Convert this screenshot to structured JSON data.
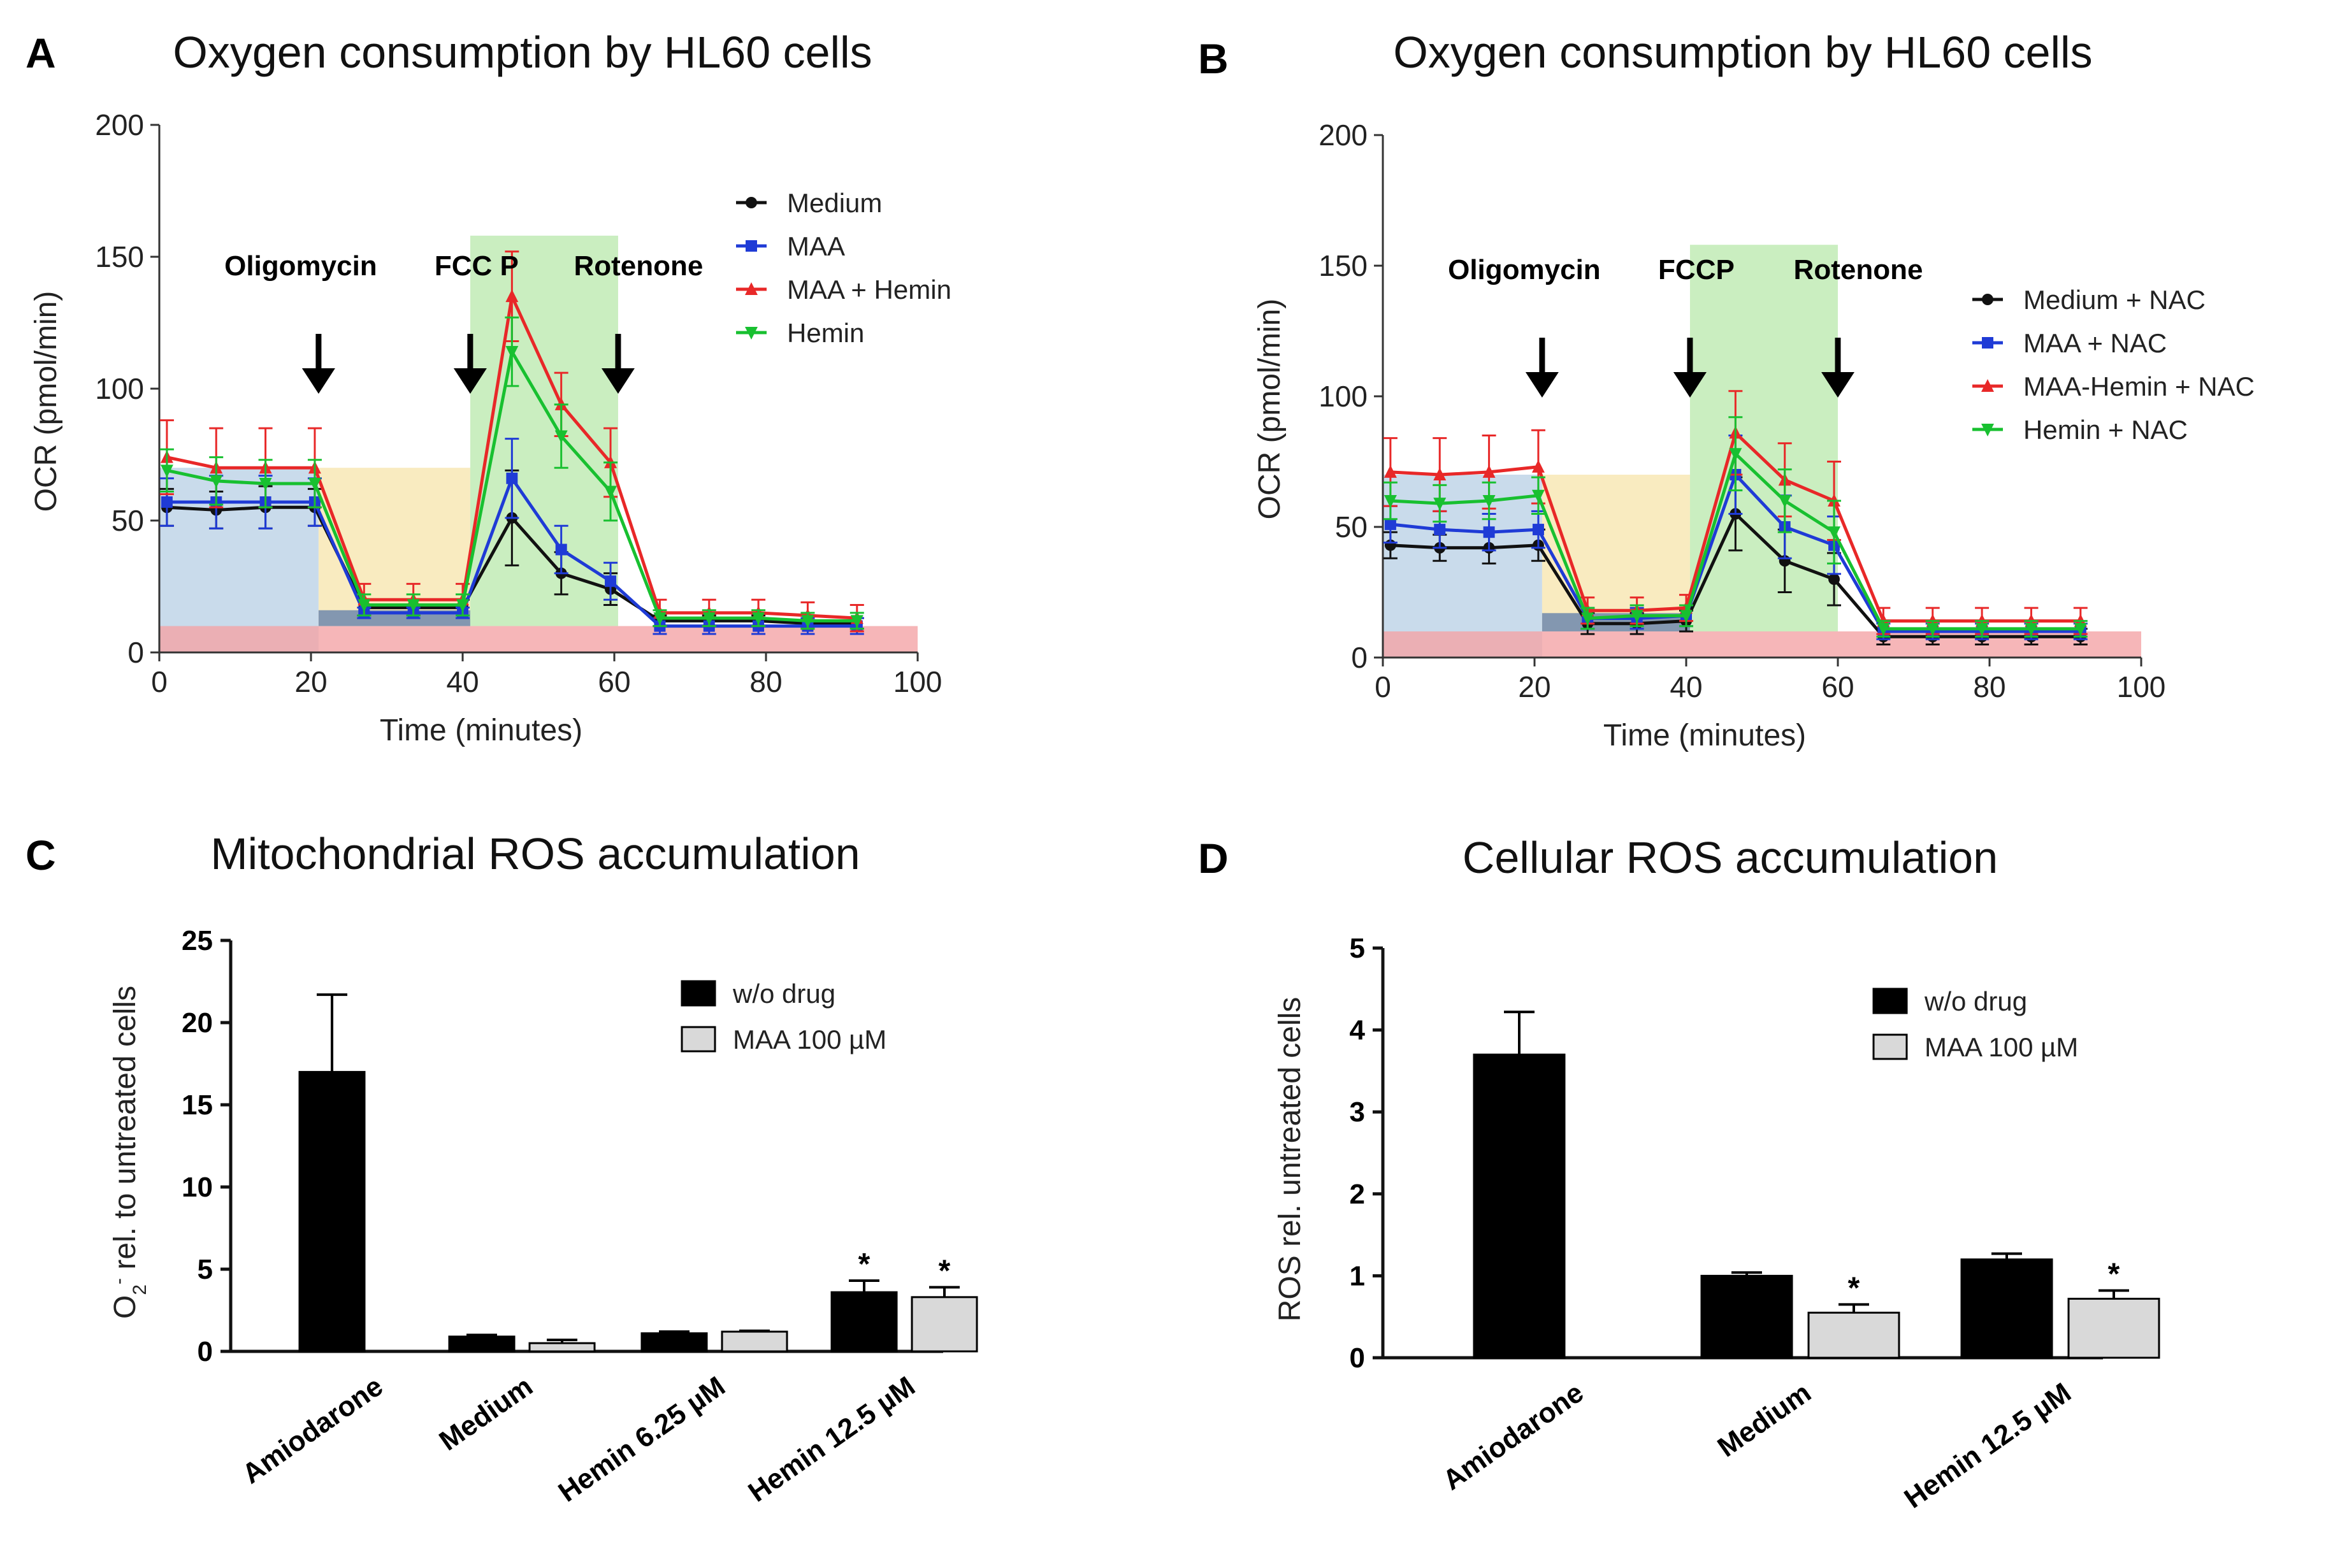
{
  "chart_data": [
    {
      "panel": "A",
      "type": "line",
      "title": "Oxygen consumption by HL60 cells",
      "xlabel": "Time (minutes)",
      "ylabel": "OCR (pmol/min)",
      "xlim": [
        0,
        100
      ],
      "ylim": [
        0,
        200
      ],
      "xticks": [
        0,
        20,
        40,
        60,
        80,
        100
      ],
      "yticks": [
        0,
        50,
        100,
        150,
        200
      ],
      "x": [
        1,
        7.5,
        14,
        20.5,
        27,
        33.5,
        40,
        46.5,
        53,
        59.5,
        66,
        72.5,
        79,
        85.5,
        92
      ],
      "series": [
        {
          "name": "Medium",
          "color": "#111111",
          "marker": "circle",
          "values": [
            55,
            54,
            55,
            55,
            17,
            17,
            17,
            51,
            30,
            24,
            12,
            12,
            12,
            11,
            11
          ],
          "errors": [
            7,
            7,
            8,
            7,
            3,
            3,
            3,
            18,
            8,
            6,
            2,
            2,
            2,
            2,
            2
          ]
        },
        {
          "name": "MAA",
          "color": "#1f3bd6",
          "marker": "square",
          "values": [
            57,
            57,
            57,
            57,
            15,
            15,
            15,
            66,
            39,
            27,
            10,
            10,
            10,
            10,
            10
          ],
          "errors": [
            9,
            10,
            10,
            9,
            2,
            2,
            2,
            15,
            9,
            7,
            3,
            3,
            3,
            3,
            3
          ]
        },
        {
          "name": "MAA + Hemin",
          "color": "#e82828",
          "marker": "triangle-up",
          "values": [
            74,
            70,
            70,
            70,
            20,
            20,
            20,
            135,
            94,
            72,
            15,
            15,
            15,
            14,
            13
          ],
          "errors": [
            14,
            15,
            15,
            15,
            6,
            6,
            6,
            17,
            12,
            13,
            5,
            5,
            5,
            5,
            5
          ]
        },
        {
          "name": "Hemin",
          "color": "#18c030",
          "marker": "triangle-down",
          "values": [
            69,
            65,
            64,
            64,
            18,
            18,
            18,
            114,
            82,
            61,
            13,
            13,
            13,
            12,
            12
          ],
          "errors": [
            8,
            9,
            9,
            9,
            4,
            4,
            4,
            13,
            12,
            11,
            3,
            3,
            3,
            3,
            3
          ]
        }
      ],
      "annotations": [
        "Oligomycin",
        "FCC P",
        "Rotenone"
      ],
      "treatment_times": [
        21,
        41,
        60.5
      ],
      "shaded_regions": [
        {
          "name": "basal",
          "x": [
            0,
            21
          ],
          "y": [
            0,
            70
          ],
          "color": "#bcd2e6"
        },
        {
          "name": "oligomycin",
          "x": [
            21,
            41
          ],
          "y": [
            10,
            70
          ],
          "color": "#f7e6b0"
        },
        {
          "name": "fccp",
          "x": [
            41,
            60.5
          ],
          "y": [
            10,
            158
          ],
          "color": "#bdeab0"
        },
        {
          "name": "non-mito",
          "x": [
            0,
            100
          ],
          "y": [
            0,
            10
          ],
          "color": "#f4a4a6"
        },
        {
          "name": "oligo-floor",
          "x": [
            21,
            41
          ],
          "y": [
            10,
            16
          ],
          "color": "#6e88ad"
        }
      ],
      "legend_position": "top-right"
    },
    {
      "panel": "B",
      "type": "line",
      "title": "Oxygen consumption by HL60 cells",
      "xlabel": "Time (minutes)",
      "ylabel": "OCR (pmol/min)",
      "xlim": [
        0,
        100
      ],
      "ylim": [
        0,
        200
      ],
      "xticks": [
        0,
        20,
        40,
        60,
        80,
        100
      ],
      "yticks": [
        0,
        50,
        100,
        150,
        200
      ],
      "x": [
        1,
        7.5,
        14,
        20.5,
        27,
        33.5,
        40,
        46.5,
        53,
        59.5,
        66,
        72.5,
        79,
        85.5,
        92
      ],
      "series": [
        {
          "name": "Medium + NAC",
          "color": "#111111",
          "marker": "circle",
          "values": [
            43,
            42,
            42,
            43,
            13,
            13,
            14,
            55,
            37,
            30,
            8,
            8,
            8,
            8,
            8
          ],
          "errors": [
            5,
            5,
            6,
            6,
            4,
            4,
            4,
            14,
            12,
            10,
            3,
            3,
            3,
            3,
            3
          ]
        },
        {
          "name": "MAA + NAC",
          "color": "#1f3bd6",
          "marker": "square",
          "values": [
            51,
            49,
            48,
            49,
            15,
            15,
            16,
            70,
            50,
            43,
            10,
            10,
            10,
            10,
            10
          ],
          "errors": [
            7,
            7,
            7,
            7,
            4,
            4,
            4,
            15,
            12,
            11,
            3,
            3,
            3,
            3,
            3
          ]
        },
        {
          "name": "MAA-Hemin + NAC",
          "color": "#e82828",
          "marker": "triangle-up",
          "values": [
            71,
            70,
            71,
            73,
            18,
            18,
            19,
            86,
            68,
            60,
            14,
            14,
            14,
            14,
            14
          ],
          "errors": [
            13,
            14,
            14,
            14,
            5,
            5,
            5,
            16,
            14,
            15,
            5,
            5,
            5,
            5,
            5
          ]
        },
        {
          "name": "Hemin + NAC",
          "color": "#18c030",
          "marker": "triangle-down",
          "values": [
            60,
            59,
            60,
            62,
            15,
            16,
            16,
            78,
            60,
            48,
            11,
            11,
            11,
            11,
            11
          ],
          "errors": [
            7,
            7,
            7,
            7,
            4,
            4,
            4,
            14,
            12,
            12,
            3,
            3,
            3,
            3,
            3
          ]
        }
      ],
      "annotations": [
        "Oligomycin",
        "FCCP",
        "Rotenone"
      ],
      "treatment_times": [
        21,
        40.5,
        60
      ],
      "shaded_regions": [
        {
          "name": "basal",
          "x": [
            0,
            21
          ],
          "y": [
            0,
            70
          ],
          "color": "#bcd2e6"
        },
        {
          "name": "oligomycin",
          "x": [
            21,
            40.5
          ],
          "y": [
            10,
            70
          ],
          "color": "#f7e6b0"
        },
        {
          "name": "fccp",
          "x": [
            40.5,
            60
          ],
          "y": [
            10,
            158
          ],
          "color": "#bdeab0"
        },
        {
          "name": "non-mito",
          "x": [
            0,
            100
          ],
          "y": [
            0,
            10
          ],
          "color": "#f4a4a6"
        },
        {
          "name": "oligo-floor",
          "x": [
            21,
            40.5
          ],
          "y": [
            10,
            17
          ],
          "color": "#6e88ad"
        }
      ],
      "legend_position": "right"
    },
    {
      "panel": "C",
      "type": "bar",
      "title": "Mitochondrial ROS accumulation",
      "ylabel": "O2- rel. to untreated cells",
      "ylabel_main": "O",
      "ylabel_sub": "2",
      "ylabel_sup": "-",
      "ylabel_rest": " rel. to untreated cells",
      "ylim": [
        0,
        25
      ],
      "yticks": [
        0,
        5,
        10,
        15,
        20,
        25
      ],
      "categories": [
        "Amiodarone",
        "Medium",
        "Hemin 6.25 µM",
        "Hemin 12.5 µM"
      ],
      "series": [
        {
          "name": "w/o drug",
          "color": "#000000",
          "values": [
            17,
            0.9,
            1.1,
            3.6
          ],
          "errors": [
            4.7,
            0.1,
            0.1,
            0.7
          ],
          "significant": [
            false,
            false,
            false,
            true
          ]
        },
        {
          "name": "MAA 100 µM",
          "color": "#d9d9d9",
          "values": [
            null,
            0.5,
            1.2,
            3.3
          ],
          "errors": [
            null,
            0.2,
            0.05,
            0.6
          ],
          "significant": [
            false,
            false,
            false,
            true
          ]
        }
      ],
      "significance_mark": "*",
      "legend_position": "top-right"
    },
    {
      "panel": "D",
      "type": "bar",
      "title": "Cellular ROS accumulation",
      "ylabel": "ROS rel. untreated cells",
      "ylim": [
        0,
        5
      ],
      "yticks": [
        0,
        1,
        2,
        3,
        4,
        5
      ],
      "categories": [
        "Amiodarone",
        "Medium",
        "Hemin 12.5 µM"
      ],
      "series": [
        {
          "name": "w/o drug",
          "color": "#000000",
          "values": [
            3.7,
            1.0,
            1.2
          ],
          "errors": [
            0.52,
            0.04,
            0.07
          ],
          "significant": [
            false,
            false,
            false
          ]
        },
        {
          "name": "MAA 100 µM",
          "color": "#d9d9d9",
          "values": [
            null,
            0.55,
            0.72
          ],
          "errors": [
            null,
            0.1,
            0.1
          ],
          "significant": [
            false,
            true,
            true
          ]
        }
      ],
      "significance_mark": "*",
      "legend_position": "top-right"
    }
  ]
}
